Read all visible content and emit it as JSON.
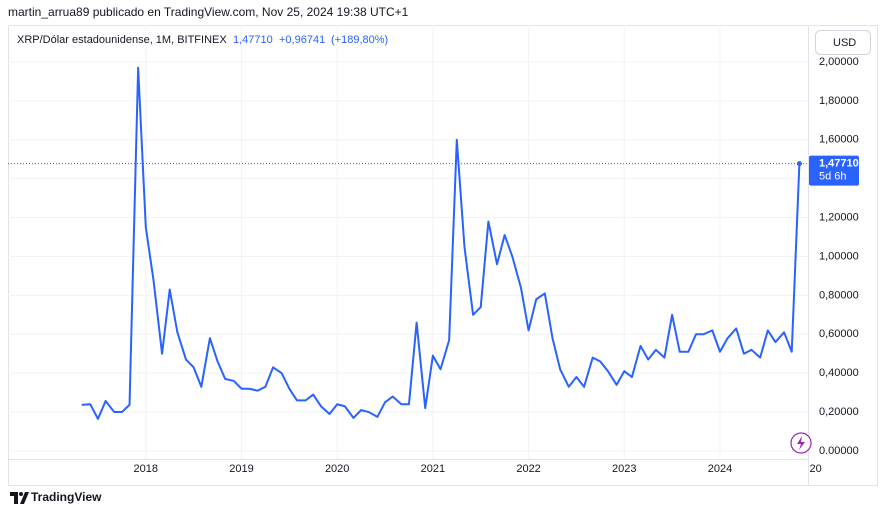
{
  "header": "martin_arrua89 publicado en TradingView.com, Nov 25, 2024 19:38 UTC+1",
  "brand": "TradingView",
  "chart_data": {
    "type": "line",
    "symbol": "XRP/Dólar estadounidense, 1M, BITFINEX",
    "last_price_label": "1,47710",
    "change": "+0,96741",
    "change_pct": "(+189,80%)",
    "currency": "USD",
    "countdown": "5d 6h",
    "color": "#2962ff",
    "grid": true,
    "x": [
      2017.33,
      2017.42,
      2017.5,
      2017.58,
      2017.67,
      2017.75,
      2017.83,
      2017.92,
      2018,
      2018.08,
      2018.17,
      2018.25,
      2018.33,
      2018.42,
      2018.5,
      2018.58,
      2018.67,
      2018.75,
      2018.83,
      2018.92,
      2019,
      2019.08,
      2019.17,
      2019.25,
      2019.33,
      2019.42,
      2019.5,
      2019.58,
      2019.67,
      2019.75,
      2019.83,
      2019.92,
      2020,
      2020.08,
      2020.17,
      2020.25,
      2020.33,
      2020.42,
      2020.5,
      2020.58,
      2020.67,
      2020.75,
      2020.83,
      2020.92,
      2021,
      2021.08,
      2021.17,
      2021.25,
      2021.33,
      2021.42,
      2021.5,
      2021.58,
      2021.67,
      2021.75,
      2021.83,
      2021.92,
      2022,
      2022.08,
      2022.17,
      2022.25,
      2022.33,
      2022.42,
      2022.5,
      2022.58,
      2022.67,
      2022.75,
      2022.83,
      2022.92,
      2023,
      2023.08,
      2023.17,
      2023.25,
      2023.33,
      2023.42,
      2023.5,
      2023.58,
      2023.67,
      2023.75,
      2023.83,
      2023.92,
      2024,
      2024.08,
      2024.17,
      2024.25,
      2024.33,
      2024.42,
      2024.5,
      2024.58,
      2024.67,
      2024.75,
      2024.83
    ],
    "values": [
      0.237,
      0.24,
      0.165,
      0.257,
      0.2,
      0.2,
      0.237,
      1.97,
      1.15,
      0.88,
      0.5,
      0.83,
      0.61,
      0.47,
      0.43,
      0.33,
      0.58,
      0.46,
      0.37,
      0.36,
      0.32,
      0.32,
      0.31,
      0.33,
      0.43,
      0.4,
      0.32,
      0.26,
      0.26,
      0.29,
      0.23,
      0.19,
      0.24,
      0.23,
      0.17,
      0.21,
      0.2,
      0.175,
      0.25,
      0.28,
      0.24,
      0.24,
      0.66,
      0.22,
      0.49,
      0.42,
      0.57,
      1.6,
      1.05,
      0.7,
      0.74,
      1.18,
      0.96,
      1.11,
      1.0,
      0.84,
      0.62,
      0.78,
      0.81,
      0.58,
      0.42,
      0.33,
      0.38,
      0.33,
      0.48,
      0.46,
      0.41,
      0.34,
      0.41,
      0.38,
      0.54,
      0.47,
      0.52,
      0.48,
      0.7,
      0.51,
      0.51,
      0.6,
      0.6,
      0.62,
      0.51,
      0.58,
      0.63,
      0.5,
      0.52,
      0.48,
      0.62,
      0.56,
      0.61,
      0.51,
      1.4771
    ],
    "xlim": [
      2016.56,
      2024.92
    ],
    "xticks": [
      2018,
      2019,
      2020,
      2021,
      2022,
      2023,
      2024,
      {
        "value": 2025,
        "label": "20"
      }
    ],
    "ylim": [
      -0.175,
      2.19
    ],
    "yticks": [
      {
        "value": 0,
        "label": "0.00000"
      },
      {
        "value": 0.2,
        "label": "0,20000"
      },
      {
        "value": 0.4,
        "label": "0,40000"
      },
      {
        "value": 0.6,
        "label": "0,60000"
      },
      {
        "value": 0.8,
        "label": "0,80000"
      },
      {
        "value": 1,
        "label": "1,00000"
      },
      {
        "value": 1.2,
        "label": "1,20000"
      },
      {
        "value": 1.4,
        "label": "1,40000"
      },
      {
        "value": 1.6,
        "label": "1,60000"
      },
      {
        "value": 1.8,
        "label": "1,80000"
      },
      {
        "value": 2,
        "label": "2,00000"
      }
    ]
  }
}
